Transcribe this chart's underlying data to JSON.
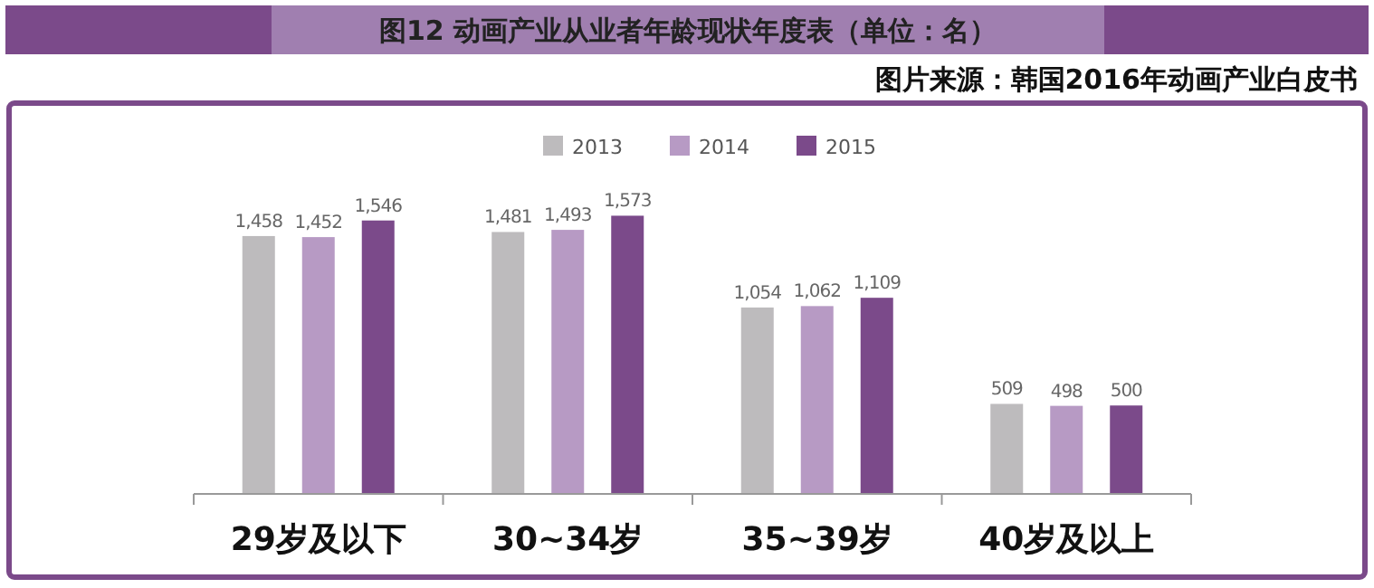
{
  "chart_data": {
    "type": "bar",
    "title": "图12 动画产业从业者年龄现状年度表（单位：名）",
    "annotations": [
      "图片来源：韩国2016年动画产业白皮书"
    ],
    "categories": [
      "29岁及以下",
      "30~34岁",
      "35~39岁",
      "40岁及以上"
    ],
    "series": [
      {
        "name": "2013",
        "color": "#bdbbbd",
        "values": [
          1458,
          1481,
          1054,
          509
        ],
        "value_labels": [
          "1,458",
          "1,481",
          "1,054",
          "509"
        ]
      },
      {
        "name": "2014",
        "color": "#b79ac4",
        "values": [
          1452,
          1493,
          1062,
          498
        ],
        "value_labels": [
          "1,452",
          "1,493",
          "1,062",
          "498"
        ]
      },
      {
        "name": "2015",
        "color": "#7b4a8a",
        "values": [
          1546,
          1573,
          1109,
          500
        ],
        "value_labels": [
          "1,546",
          "1,573",
          "1,109",
          "500"
        ]
      }
    ],
    "legend": "top"
  }
}
